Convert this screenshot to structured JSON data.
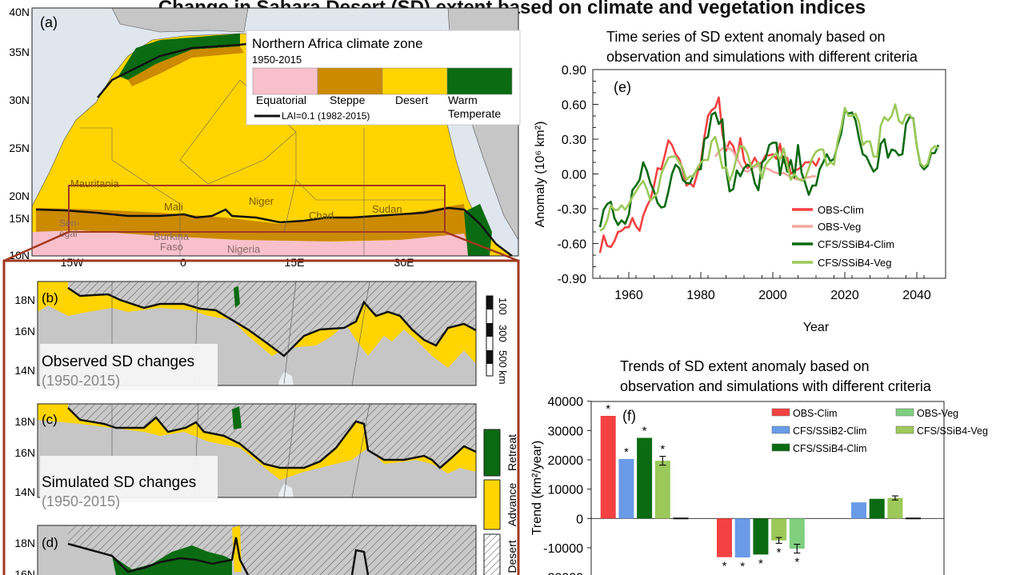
{
  "title": "Change in Sahara Desert (SD) extent based on climate and vegetation indices",
  "colors": {
    "equatorial": "#f7c0cb",
    "steppe": "#cc8a00",
    "desert": "#ffd400",
    "warm_temperate": "#0b6b12",
    "land_gray": "#c6c6c6",
    "ocean": "#dfe6ee",
    "box": "#a0391f",
    "obs_clim": "#f44242",
    "obs_veg": "#f3a6a0",
    "ssib2_clim": "#6a9be8",
    "ssib4_clim": "#0b6b12",
    "ssib4_veg": "#9cc95a",
    "obs_veg_bar": "#7fcf7f"
  },
  "map_a": {
    "panel_label": "(a)",
    "legend_title": "Northern Africa climate zone",
    "legend_period": "1950-2015",
    "zones": [
      "Equatorial",
      "Steppe",
      "Desert",
      "Warm",
      "Temperate"
    ],
    "lai_label": "LAI=0.1 (1982-2015)",
    "lat_ticks": [
      "40N",
      "35N",
      "30N",
      "25N",
      "20N",
      "15N",
      "10N"
    ],
    "lon_ticks": [
      "15W",
      "0",
      "15E",
      "30E"
    ],
    "countries": [
      "Mauritania",
      "Mali",
      "Niger",
      "Chad",
      "Sudan",
      "Sen-",
      "egal",
      "Burkina",
      "Faso",
      "Nigeria"
    ]
  },
  "map_panels": {
    "lat_ticks": [
      "18N",
      "16N",
      "14N"
    ],
    "b": {
      "label": "(b)",
      "caption": "Observed SD changes",
      "period": "(1950-2015)"
    },
    "c": {
      "label": "(c)",
      "caption": "Simulated SD changes",
      "period": "(1950-2015)"
    },
    "d": {
      "label": "(d)"
    },
    "scale_bar": [
      "100",
      "300",
      "500 km"
    ],
    "legend": [
      "Retreat",
      "Advance",
      "Desert"
    ]
  },
  "chart_data": [
    {
      "type": "line",
      "panel_label": "(e)",
      "title": "Time series of SD extent anomaly based on observation and simulations with different criteria",
      "title_lines": [
        "Time series of SD extent anomaly based on",
        "observation and simulations with different criteria"
      ],
      "xlabel": "Year",
      "ylabel": "Anomaly (10⁶ km²)",
      "xlim": [
        1950,
        2048
      ],
      "ylim": [
        -0.9,
        0.9
      ],
      "x_ticks": [
        "1960",
        "1980",
        "2000",
        "2020",
        "2040"
      ],
      "y_ticks": [
        "0.90",
        "0.60",
        "0.30",
        "0.00",
        "-0.30",
        "-0.60",
        "-0.90"
      ],
      "grid": false,
      "legend_position": "lower-right",
      "series": [
        {
          "name": "OBS-Clim",
          "color": "#f44242",
          "x_start": 1952,
          "values": [
            -0.68,
            -0.53,
            -0.62,
            -0.63,
            -0.58,
            -0.5,
            -0.49,
            -0.46,
            -0.46,
            -0.38,
            -0.45,
            -0.49,
            -0.36,
            -0.28,
            -0.22,
            -0.1,
            0.05,
            0.04,
            0.16,
            0.29,
            0.25,
            0.17,
            0.13,
            0.03,
            -0.1,
            -0.08,
            -0.11,
            0.0,
            0.1,
            0.32,
            0.5,
            0.55,
            0.57,
            0.66,
            0.35,
            0.2,
            0.28,
            0.24,
            0.12,
            0.31,
            0.12,
            0.05,
            0.08,
            0.14,
            0.08,
            0.1,
            0.16,
            0.16,
            0.17,
            0.13,
            0.26,
            0.1,
            0.14,
            0.0,
            0.03,
            0.04,
            0.06,
            0.1,
            0.1,
            0.11,
            0.07,
            0.14
          ]
        },
        {
          "name": "OBS-Veg",
          "color": "#f3a6a0",
          "x_start": 1984,
          "values": [
            0.15,
            0.19,
            0.22,
            0.23,
            0.22,
            0.19,
            0.14,
            0.08,
            0.03,
            0.02,
            0.04,
            0.06,
            0.07,
            0.06,
            0.05,
            0.04,
            0.02,
            0.01,
            0.0,
            0.01,
            -0.01,
            -0.03,
            -0.04,
            -0.05,
            -0.04,
            -0.03,
            -0.03,
            -0.02,
            -0.02
          ]
        },
        {
          "name": "CFS/SSiB4-Clim",
          "color": "#0b6b12",
          "x_start": 1952,
          "values": [
            -0.46,
            -0.31,
            -0.26,
            -0.24,
            -0.38,
            -0.44,
            -0.4,
            -0.43,
            -0.35,
            -0.14,
            -0.1,
            -0.05,
            0.1,
            0.03,
            -0.08,
            -0.15,
            -0.25,
            -0.29,
            -0.28,
            -0.15,
            0.0,
            0.08,
            0.05,
            -0.05,
            -0.08,
            -0.08,
            -0.01,
            0.04,
            0.04,
            0.3,
            0.32,
            0.51,
            0.53,
            0.43,
            0.47,
            0.05,
            -0.15,
            -0.13,
            0.03,
            -0.02,
            0.05,
            0.08,
            0.06,
            -0.08,
            -0.14,
            0.1,
            0.13,
            0.25,
            0.27,
            0.27,
            -0.01,
            0.15,
            0.02,
            0.12,
            -0.03,
            0.25,
            0.01,
            -0.08,
            -0.18,
            -0.1,
            -0.1,
            0.04,
            0.1,
            0.17,
            0.11,
            0.13,
            0.25,
            0.35,
            0.55,
            0.52,
            0.53,
            0.46,
            0.3,
            0.17,
            0.15,
            0.08,
            0.02,
            0.05,
            0.26,
            0.3,
            0.14,
            0.21,
            0.2,
            0.16,
            0.17,
            0.43,
            0.49,
            0.48,
            0.24,
            0.08,
            0.04,
            0.07,
            0.18,
            0.18,
            0.25
          ]
        },
        {
          "name": "CFS/SSiB4-Veg",
          "color": "#9cc95a",
          "x_start": 1952,
          "values": [
            -0.49,
            -0.47,
            -0.4,
            -0.27,
            -0.31,
            -0.31,
            -0.27,
            -0.31,
            -0.26,
            -0.2,
            -0.15,
            -0.1,
            -0.06,
            -0.13,
            -0.23,
            -0.2,
            -0.16,
            0.0,
            0.07,
            0.14,
            0.15,
            0.15,
            0.1,
            0.05,
            -0.05,
            -0.02,
            -0.02,
            0.05,
            0.1,
            0.12,
            0.12,
            0.28,
            0.32,
            0.2,
            0.05,
            0.06,
            -0.06,
            0.02,
            0.15,
            0.24,
            0.23,
            0.17,
            0.06,
            0.07,
            0.1,
            -0.04,
            0.08,
            0.12,
            0.15,
            0.18,
            0.12,
            0.22,
            0.08,
            -0.05,
            0.0,
            -0.04,
            -0.06,
            -0.04,
            0.05,
            0.14,
            0.19,
            0.21,
            0.21,
            0.07,
            0.1,
            0.08,
            0.28,
            0.4,
            0.57,
            0.5,
            0.5,
            0.52,
            0.44,
            0.25,
            0.28,
            0.28,
            0.15,
            0.15,
            0.42,
            0.49,
            0.46,
            0.5,
            0.6,
            0.46,
            0.43,
            0.51,
            0.51,
            0.47,
            0.24,
            0.09,
            0.06,
            0.09,
            0.21,
            0.24,
            0.22
          ]
        }
      ]
    },
    {
      "type": "bar",
      "panel_label": "(f)",
      "title": "Trends of SD extent anomaly based on observation and simulations with different criteria",
      "title_lines": [
        "Trends of SD extent anomaly based on",
        "observation and simulations with different criteria"
      ],
      "ylabel": "Trend (km²/year)",
      "ylim": [
        -20000,
        40000
      ],
      "y_ticks": [
        "40000",
        "30000",
        "20000",
        "10000",
        "0",
        "-10000"
      ],
      "legend_position": "top-right",
      "series": [
        {
          "name": "OBS-Clim",
          "color": "#f44242",
          "values": [
            35000,
            -13200,
            null
          ],
          "significant": [
            true,
            true,
            false
          ],
          "error": [
            null,
            null,
            null
          ]
        },
        {
          "name": "CFS/SSiB2-Clim",
          "color": "#6a9be8",
          "values": [
            20300,
            -13300,
            5500
          ],
          "significant": [
            true,
            true,
            false
          ],
          "error": [
            null,
            null,
            null
          ]
        },
        {
          "name": "CFS/SSiB4-Clim",
          "color": "#0b6b12",
          "values": [
            27500,
            -12300,
            6700
          ],
          "significant": [
            true,
            true,
            false
          ],
          "error": [
            null,
            null,
            null
          ]
        },
        {
          "name": "CFS/SSiB4-Veg",
          "color": "#9cc95a",
          "values": [
            19700,
            -7500,
            7000
          ],
          "significant": [
            true,
            true,
            false
          ],
          "error": [
            1500,
            1000,
            700
          ]
        },
        {
          "name": "OBS-Veg",
          "color": "#7fcf7f",
          "values": [
            0,
            -10300,
            0
          ],
          "significant": [
            false,
            true,
            false
          ],
          "error": [
            null,
            1500,
            null
          ]
        }
      ],
      "legend_order": [
        "OBS-Clim",
        "CFS/SSiB2-Clim",
        "CFS/SSiB4-Clim",
        "OBS-Veg",
        "CFS/SSiB4-Veg"
      ]
    }
  ]
}
